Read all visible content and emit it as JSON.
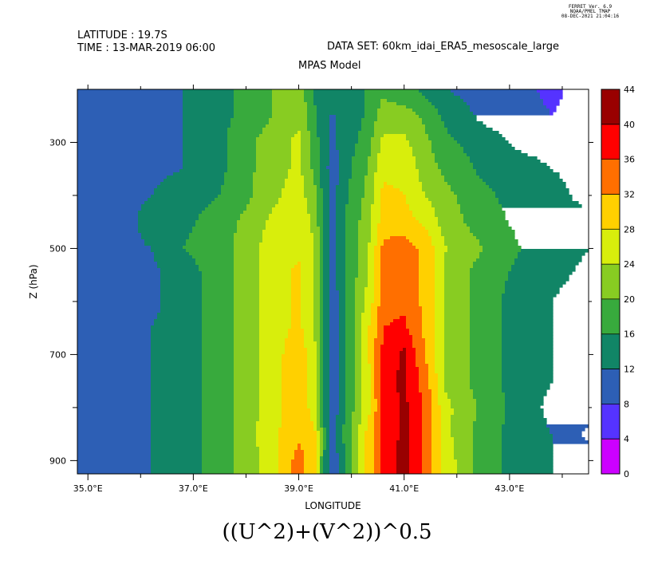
{
  "header": {
    "stamp_lines": [
      "FERRET Ver. 6.9",
      "NOAA/PMEL TMAP",
      "08-DEC-2021 21:04:16"
    ],
    "latitude": "LATITUDE : 19.7S",
    "time": "TIME : 13-MAR-2019 06:00",
    "dataset": "DATA SET: 60km_idai_ERA5_mesoscale_large",
    "model": "MPAS Model"
  },
  "formula": "((U^2)+(V^2))^0.5",
  "colors": {
    "levels": [
      "#cc00ff",
      "#5533ff",
      "#2d5fb5",
      "#118566",
      "#38aa3d",
      "#88cc22",
      "#d8ee0c",
      "#ffd000",
      "#ff6f00",
      "#ff0000",
      "#990000"
    ]
  },
  "chart_data": {
    "type": "contour",
    "title": "((U^2)+(V^2))^0.5",
    "xlabel": "LONGITUDE",
    "ylabel": "Z (hPa)",
    "x_ticks": [
      "35.0°E",
      "37.0°E",
      "39.0°E",
      "41.0°E",
      "43.0°E"
    ],
    "y_ticks": [
      "300",
      "500",
      "700",
      "900"
    ],
    "xlim": [
      34.8,
      44.5
    ],
    "ylim": [
      200,
      925
    ],
    "y_inverted": true,
    "colorbar": {
      "ticks": [
        "44",
        "40",
        "36",
        "32",
        "28",
        "24",
        "20",
        "16",
        "12",
        "8",
        "4",
        "0"
      ],
      "levels": [
        0,
        4,
        8,
        12,
        16,
        20,
        24,
        28,
        32,
        36,
        40,
        44
      ]
    },
    "x": [
      34.8,
      35.0,
      35.8,
      36.2,
      36.8,
      37.5,
      38.0,
      38.5,
      39.0,
      39.3,
      39.5,
      39.65,
      39.8,
      40.0,
      40.3,
      40.6,
      41.0,
      41.4,
      41.8,
      42.5,
      43.2,
      43.8,
      44.5
    ],
    "z": [
      200,
      250,
      300,
      350,
      400,
      450,
      500,
      550,
      600,
      650,
      700,
      750,
      800,
      850,
      900,
      925
    ],
    "field": [
      [
        9,
        9,
        9,
        10,
        12,
        15,
        17,
        20,
        23,
        15,
        12,
        12,
        12,
        13,
        17,
        19,
        17,
        15,
        12,
        10,
        9,
        7,
        10
      ],
      [
        9,
        9,
        9,
        9,
        12,
        15,
        17,
        20,
        23,
        17,
        12,
        12,
        12,
        13,
        17,
        22,
        22,
        19,
        15,
        11,
        10,
        8,
        10
      ],
      [
        9,
        9,
        10,
        10,
        12,
        15,
        19,
        22,
        25,
        18,
        13,
        11,
        13,
        15,
        18,
        25,
        25,
        21,
        17,
        14,
        11,
        10,
        10
      ],
      [
        11,
        10,
        10,
        11,
        12,
        15,
        19,
        22,
        25,
        19,
        13,
        10,
        13,
        16,
        20,
        27,
        27,
        22,
        19,
        15,
        14,
        12,
        11
      ],
      [
        11,
        11,
        11,
        12,
        14,
        16,
        19,
        23,
        26,
        21,
        14,
        10,
        14,
        17,
        21,
        29,
        28,
        24,
        21,
        17,
        14,
        13,
        11
      ],
      [
        10,
        11,
        11,
        14,
        15,
        18,
        21,
        25,
        27,
        23,
        14,
        9,
        15,
        18,
        22,
        30,
        30,
        27,
        22,
        18,
        15,
        13,
        13
      ],
      [
        10,
        11,
        11,
        12,
        16,
        18,
        22,
        26,
        27,
        24,
        14,
        9,
        15,
        18,
        23,
        33,
        34,
        31,
        24,
        20,
        16,
        14,
        12
      ],
      [
        11,
        11,
        11,
        11,
        14,
        18,
        22,
        26,
        29,
        24,
        14,
        9,
        15,
        18,
        24,
        33,
        34,
        31,
        23,
        18,
        15,
        13,
        11
      ],
      [
        11,
        11,
        11,
        11,
        14,
        18,
        22,
        26,
        29,
        23,
        15,
        9,
        14,
        19,
        25,
        34,
        35,
        31,
        23,
        18,
        14,
        12,
        10
      ],
      [
        9,
        10,
        11,
        12,
        14,
        18,
        22,
        26,
        29,
        24,
        15,
        9,
        14,
        19,
        27,
        36,
        37,
        31,
        23,
        18,
        14,
        12,
        10
      ],
      [
        9,
        9,
        11,
        12,
        14,
        18,
        22,
        26,
        31,
        25,
        14,
        9,
        14,
        19,
        27,
        37,
        41,
        32,
        23,
        18,
        14,
        12,
        10
      ],
      [
        9,
        9,
        11,
        12,
        14,
        18,
        22,
        26,
        31,
        25,
        14,
        9,
        14,
        19,
        26,
        38,
        41,
        34,
        23,
        18,
        14,
        12,
        10
      ],
      [
        9,
        9,
        11,
        12,
        14,
        18,
        22,
        26,
        31,
        26,
        14,
        9,
        14,
        19,
        26,
        37,
        41,
        35,
        25,
        19,
        14,
        11,
        10
      ],
      [
        10,
        10,
        11,
        12,
        14,
        18,
        22,
        27,
        31,
        29,
        16,
        10,
        15,
        20,
        29,
        37,
        41,
        35,
        25,
        18,
        14,
        12,
        7
      ],
      [
        10,
        10,
        11,
        12,
        14,
        18,
        22,
        26,
        34,
        29,
        15,
        9,
        14,
        19,
        29,
        37,
        42,
        35,
        26,
        18,
        14,
        12,
        10
      ],
      [
        10,
        10,
        11,
        12,
        14,
        18,
        22,
        26,
        34,
        29,
        15,
        9,
        14,
        19,
        29,
        37,
        42,
        35,
        26,
        18,
        14,
        12,
        10
      ]
    ]
  }
}
